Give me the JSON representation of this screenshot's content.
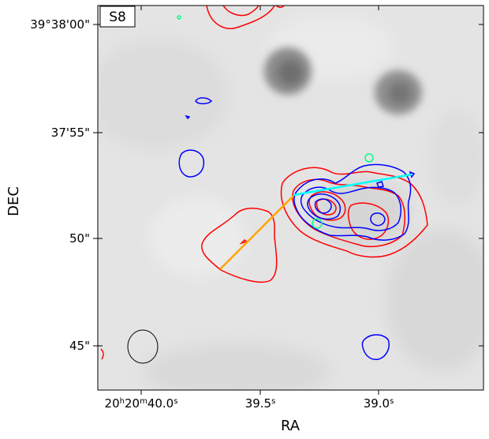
{
  "panel_label": "S8",
  "axes": {
    "xlabel": "RA",
    "ylabel": "DEC",
    "x_ticks": [
      {
        "h": "20",
        "m": "20",
        "s": "40.0",
        "label_prefix": "20",
        "label": "20h20m40.0s"
      },
      {
        "s": "39.5",
        "label": "39.5s"
      },
      {
        "s": "39.0",
        "label": "39.0s"
      }
    ],
    "y_ticks": [
      {
        "label": "39°38'00\""
      },
      {
        "label": "37'55\""
      },
      {
        "label": "50\""
      },
      {
        "label": "45\""
      }
    ]
  },
  "x_tick_text": {
    "t0_a": "20",
    "t0_h": "h",
    "t0_b": "20",
    "t0_m": "m",
    "t0_c": "40.0",
    "t0_s": "s",
    "t1_a": "39.5",
    "t1_s": "s",
    "t2_a": "39.0",
    "t2_s": "s"
  },
  "colors": {
    "red_contour": "#ff0000",
    "blue_contour": "#0000ff",
    "green_contour": "#00ff7f",
    "orange_line": "#ffa500",
    "cyan_line": "#00ffff",
    "beam": "#000000"
  },
  "features": {
    "background": "greyscale-image",
    "contours": [
      "red",
      "blue",
      "green"
    ],
    "lines": [
      "orange",
      "cyan"
    ],
    "beam_ellipse": true
  }
}
